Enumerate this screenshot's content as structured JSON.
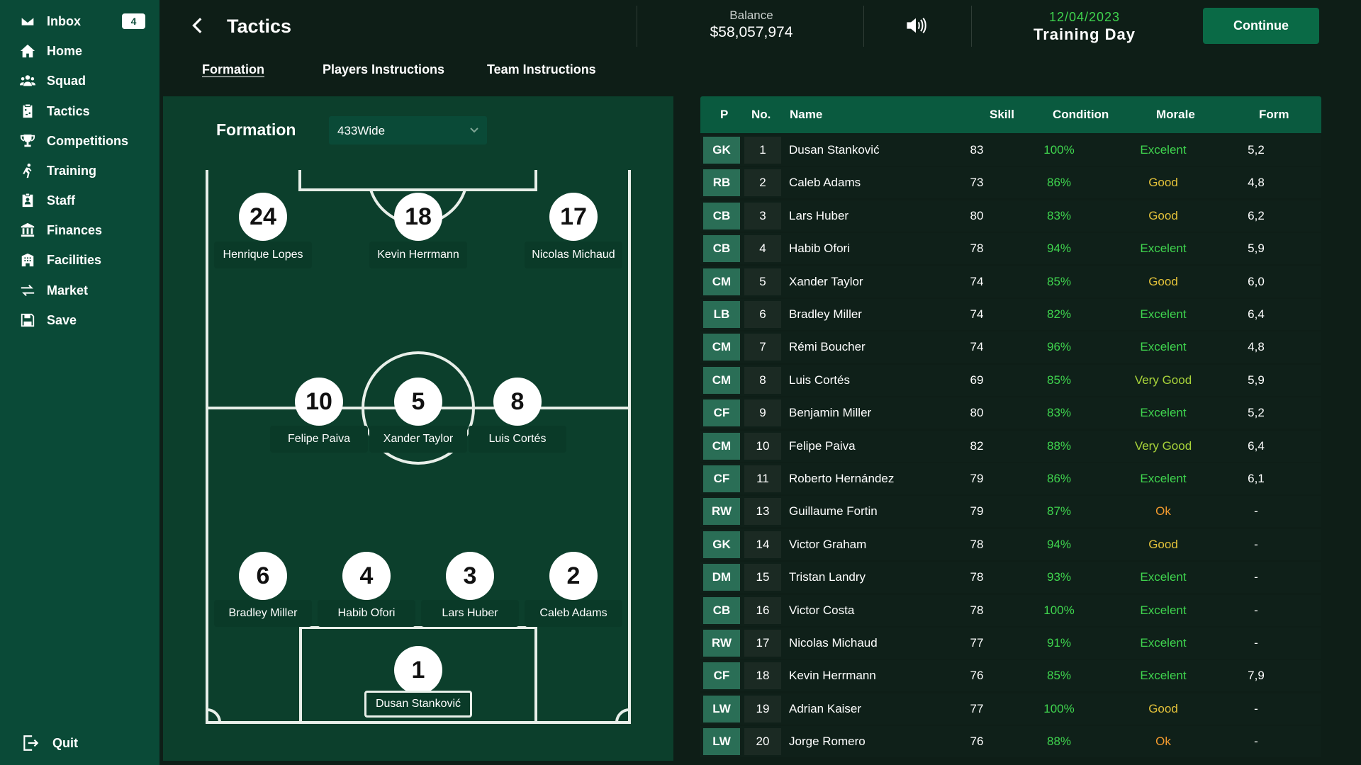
{
  "sidebar": {
    "items": [
      {
        "label": "Inbox",
        "icon": "mail-icon",
        "badge": "4"
      },
      {
        "label": "Home",
        "icon": "home-icon"
      },
      {
        "label": "Squad",
        "icon": "squad-icon"
      },
      {
        "label": "Tactics",
        "icon": "clipboard-icon"
      },
      {
        "label": "Competitions",
        "icon": "trophy-icon"
      },
      {
        "label": "Training",
        "icon": "running-icon"
      },
      {
        "label": "Staff",
        "icon": "staff-badge-icon"
      },
      {
        "label": "Finances",
        "icon": "bank-icon"
      },
      {
        "label": "Facilities",
        "icon": "building-icon"
      },
      {
        "label": "Market",
        "icon": "transfer-icon"
      },
      {
        "label": "Save",
        "icon": "save-icon"
      }
    ],
    "quit_label": "Quit"
  },
  "header": {
    "title": "Tactics",
    "balance_label": "Balance",
    "balance_value": "$58,057,974",
    "date": "12/04/2023",
    "day_label": "Training Day",
    "continue_label": "Continue"
  },
  "tabs": [
    {
      "label": "Formation",
      "active": true
    },
    {
      "label": "Players Instructions",
      "active": false
    },
    {
      "label": "Team Instructions",
      "active": false
    }
  ],
  "formation": {
    "label": "Formation",
    "selected": "433Wide",
    "lineup": [
      {
        "number": "24",
        "name": "Henrique Lopes"
      },
      {
        "number": "18",
        "name": "Kevin Herrmann"
      },
      {
        "number": "17",
        "name": "Nicolas Michaud"
      },
      {
        "number": "10",
        "name": "Felipe Paiva"
      },
      {
        "number": "5",
        "name": "Xander Taylor"
      },
      {
        "number": "8",
        "name": "Luis Cortés"
      },
      {
        "number": "6",
        "name": "Bradley Miller"
      },
      {
        "number": "4",
        "name": "Habib Ofori"
      },
      {
        "number": "3",
        "name": "Lars Huber"
      },
      {
        "number": "2",
        "name": "Caleb Adams"
      },
      {
        "number": "1",
        "name": "Dusan Stanković"
      }
    ]
  },
  "table": {
    "headers": {
      "p": "P",
      "no": "No.",
      "name": "Name",
      "skill": "Skill",
      "condition": "Condition",
      "morale": "Morale",
      "form": "Form"
    },
    "rows": [
      {
        "p": "GK",
        "no": "1",
        "name": "Dusan Stanković",
        "skill": "83",
        "condition": "100%",
        "morale": "Excelent",
        "form": "5,2"
      },
      {
        "p": "RB",
        "no": "2",
        "name": "Caleb Adams",
        "skill": "73",
        "condition": "86%",
        "morale": "Good",
        "form": "4,8"
      },
      {
        "p": "CB",
        "no": "3",
        "name": "Lars Huber",
        "skill": "80",
        "condition": "83%",
        "morale": "Good",
        "form": "6,2"
      },
      {
        "p": "CB",
        "no": "4",
        "name": "Habib Ofori",
        "skill": "78",
        "condition": "94%",
        "morale": "Excelent",
        "form": "5,9"
      },
      {
        "p": "CM",
        "no": "5",
        "name": "Xander Taylor",
        "skill": "74",
        "condition": "85%",
        "morale": "Good",
        "form": "6,0"
      },
      {
        "p": "LB",
        "no": "6",
        "name": "Bradley Miller",
        "skill": "74",
        "condition": "82%",
        "morale": "Excelent",
        "form": "6,4"
      },
      {
        "p": "CM",
        "no": "7",
        "name": "Rémi Boucher",
        "skill": "74",
        "condition": "96%",
        "morale": "Excelent",
        "form": "4,8"
      },
      {
        "p": "CM",
        "no": "8",
        "name": "Luis Cortés",
        "skill": "69",
        "condition": "85%",
        "morale": "Very Good",
        "form": "5,9"
      },
      {
        "p": "CF",
        "no": "9",
        "name": "Benjamin Miller",
        "skill": "80",
        "condition": "83%",
        "morale": "Excelent",
        "form": "5,2"
      },
      {
        "p": "CM",
        "no": "10",
        "name": "Felipe Paiva",
        "skill": "82",
        "condition": "88%",
        "morale": "Very Good",
        "form": "6,4"
      },
      {
        "p": "CF",
        "no": "11",
        "name": "Roberto Hernández",
        "skill": "79",
        "condition": "86%",
        "morale": "Excelent",
        "form": "6,1"
      },
      {
        "p": "RW",
        "no": "13",
        "name": "Guillaume Fortin",
        "skill": "79",
        "condition": "87%",
        "morale": "Ok",
        "form": "-"
      },
      {
        "p": "GK",
        "no": "14",
        "name": "Victor Graham",
        "skill": "78",
        "condition": "94%",
        "morale": "Good",
        "form": "-"
      },
      {
        "p": "DM",
        "no": "15",
        "name": "Tristan Landry",
        "skill": "78",
        "condition": "93%",
        "morale": "Excelent",
        "form": "-"
      },
      {
        "p": "CB",
        "no": "16",
        "name": "Victor Costa",
        "skill": "78",
        "condition": "100%",
        "morale": "Excelent",
        "form": "-"
      },
      {
        "p": "RW",
        "no": "17",
        "name": "Nicolas Michaud",
        "skill": "77",
        "condition": "91%",
        "morale": "Excelent",
        "form": "-"
      },
      {
        "p": "CF",
        "no": "18",
        "name": "Kevin Herrmann",
        "skill": "76",
        "condition": "85%",
        "morale": "Excelent",
        "form": "7,9"
      },
      {
        "p": "LW",
        "no": "19",
        "name": "Adrian Kaiser",
        "skill": "77",
        "condition": "100%",
        "morale": "Good",
        "form": "-"
      },
      {
        "p": "LW",
        "no": "20",
        "name": "Jorge Romero",
        "skill": "76",
        "condition": "88%",
        "morale": "Ok",
        "form": "-"
      }
    ]
  },
  "colors": {
    "sidebar": "#0a4a37",
    "accent_green": "#3fd44e",
    "morale_good": "#e4c23a",
    "morale_ok": "#f29a2e",
    "continue": "#0a6a46"
  }
}
